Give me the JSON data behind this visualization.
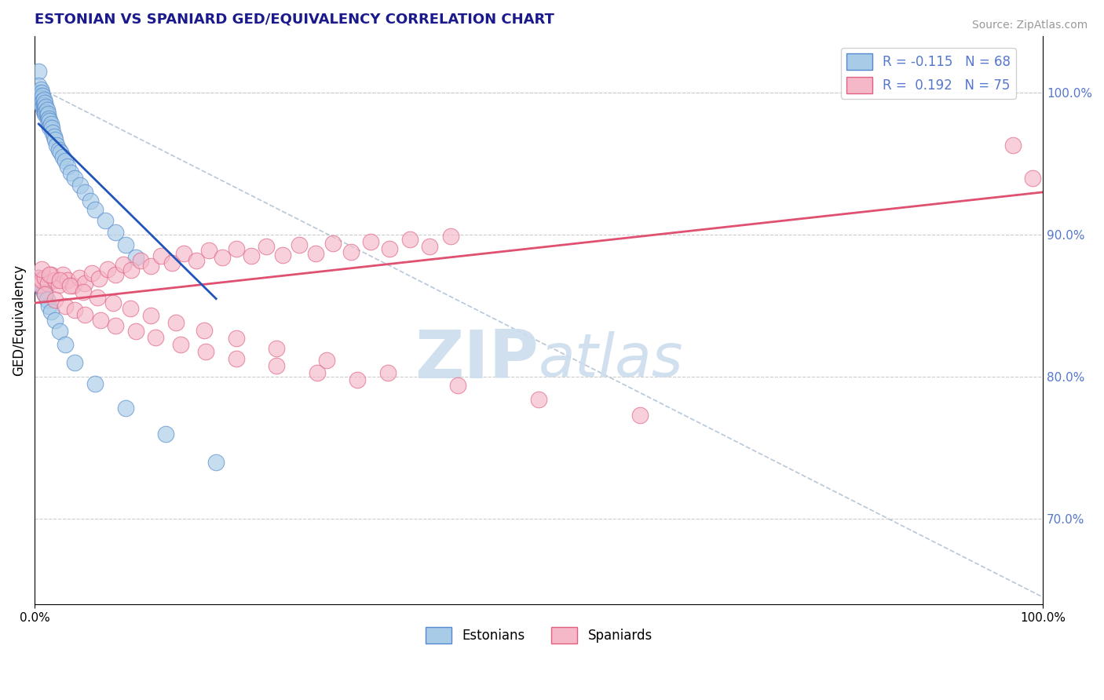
{
  "title": "ESTONIAN VS SPANIARD GED/EQUIVALENCY CORRELATION CHART",
  "source_text": "Source: ZipAtlas.com",
  "ylabel": "GED/Equivalency",
  "xlim": [
    0.0,
    1.0
  ],
  "ylim": [
    0.64,
    1.04
  ],
  "right_yticks": [
    0.7,
    0.8,
    0.9,
    1.0
  ],
  "right_yticklabels": [
    "70.0%",
    "80.0%",
    "90.0%",
    "100.0%"
  ],
  "legend_labels": [
    "Estonians",
    "Spaniards"
  ],
  "R_estonian": -0.115,
  "N_estonian": 68,
  "R_spaniard": 0.192,
  "N_spaniard": 75,
  "estonian_color": "#a8cce8",
  "spaniard_color": "#f5b8c8",
  "estonian_edge_color": "#5588cc",
  "spaniard_edge_color": "#e06080",
  "estonian_line_color": "#2255bb",
  "spaniard_line_color": "#e05070",
  "diagonal_line_color": "#b8c8d8",
  "background_color": "#ffffff",
  "title_color": "#1a1a8c",
  "source_color": "#999999",
  "watermark_color": "#ccdded",
  "right_tick_color": "#5577cc",
  "blue_x": [
    0.004,
    0.004,
    0.005,
    0.005,
    0.005,
    0.006,
    0.006,
    0.006,
    0.007,
    0.007,
    0.007,
    0.008,
    0.008,
    0.008,
    0.009,
    0.009,
    0.009,
    0.01,
    0.01,
    0.01,
    0.011,
    0.011,
    0.012,
    0.012,
    0.013,
    0.013,
    0.014,
    0.015,
    0.015,
    0.016,
    0.017,
    0.018,
    0.019,
    0.02,
    0.022,
    0.024,
    0.026,
    0.028,
    0.03,
    0.033,
    0.036,
    0.04,
    0.045,
    0.05,
    0.055,
    0.06,
    0.07,
    0.08,
    0.09,
    0.1,
    0.004,
    0.005,
    0.006,
    0.007,
    0.008,
    0.009,
    0.01,
    0.012,
    0.014,
    0.016,
    0.02,
    0.025,
    0.03,
    0.04,
    0.06,
    0.09,
    0.13,
    0.18
  ],
  "blue_y": [
    1.015,
    1.005,
    1.0,
    0.998,
    0.996,
    1.002,
    0.998,
    0.994,
    1.0,
    0.996,
    0.992,
    0.998,
    0.994,
    0.99,
    0.995,
    0.991,
    0.987,
    0.993,
    0.989,
    0.985,
    0.99,
    0.986,
    0.988,
    0.984,
    0.985,
    0.981,
    0.982,
    0.98,
    0.976,
    0.978,
    0.975,
    0.972,
    0.969,
    0.967,
    0.963,
    0.96,
    0.958,
    0.955,
    0.952,
    0.948,
    0.944,
    0.94,
    0.935,
    0.93,
    0.924,
    0.918,
    0.91,
    0.902,
    0.893,
    0.884,
    0.87,
    0.868,
    0.866,
    0.864,
    0.862,
    0.86,
    0.858,
    0.854,
    0.85,
    0.846,
    0.84,
    0.832,
    0.823,
    0.81,
    0.795,
    0.778,
    0.76,
    0.74
  ],
  "pink_x": [
    0.003,
    0.005,
    0.007,
    0.01,
    0.013,
    0.016,
    0.02,
    0.024,
    0.028,
    0.033,
    0.038,
    0.044,
    0.05,
    0.057,
    0.064,
    0.072,
    0.08,
    0.088,
    0.096,
    0.105,
    0.115,
    0.125,
    0.136,
    0.148,
    0.16,
    0.173,
    0.186,
    0.2,
    0.215,
    0.23,
    0.246,
    0.262,
    0.279,
    0.296,
    0.314,
    0.333,
    0.352,
    0.372,
    0.392,
    0.413,
    0.01,
    0.02,
    0.03,
    0.04,
    0.05,
    0.065,
    0.08,
    0.1,
    0.12,
    0.145,
    0.17,
    0.2,
    0.24,
    0.28,
    0.32,
    0.007,
    0.015,
    0.025,
    0.035,
    0.048,
    0.062,
    0.078,
    0.095,
    0.115,
    0.14,
    0.168,
    0.2,
    0.24,
    0.29,
    0.35,
    0.42,
    0.5,
    0.6,
    0.97,
    0.99
  ],
  "pink_y": [
    0.87,
    0.865,
    0.868,
    0.87,
    0.866,
    0.872,
    0.868,
    0.865,
    0.872,
    0.868,
    0.864,
    0.87,
    0.866,
    0.873,
    0.869,
    0.876,
    0.872,
    0.879,
    0.875,
    0.882,
    0.878,
    0.885,
    0.88,
    0.887,
    0.882,
    0.889,
    0.884,
    0.89,
    0.885,
    0.892,
    0.886,
    0.893,
    0.887,
    0.894,
    0.888,
    0.895,
    0.89,
    0.897,
    0.892,
    0.899,
    0.858,
    0.854,
    0.85,
    0.847,
    0.844,
    0.84,
    0.836,
    0.832,
    0.828,
    0.823,
    0.818,
    0.813,
    0.808,
    0.803,
    0.798,
    0.876,
    0.872,
    0.868,
    0.864,
    0.86,
    0.856,
    0.852,
    0.848,
    0.843,
    0.838,
    0.833,
    0.827,
    0.82,
    0.812,
    0.803,
    0.794,
    0.784,
    0.773,
    0.963,
    0.94
  ],
  "pink_line_x": [
    0.0,
    1.0
  ],
  "pink_line_y": [
    0.852,
    0.93
  ],
  "blue_line_x": [
    0.004,
    0.18
  ],
  "blue_line_y": [
    0.978,
    0.855
  ]
}
